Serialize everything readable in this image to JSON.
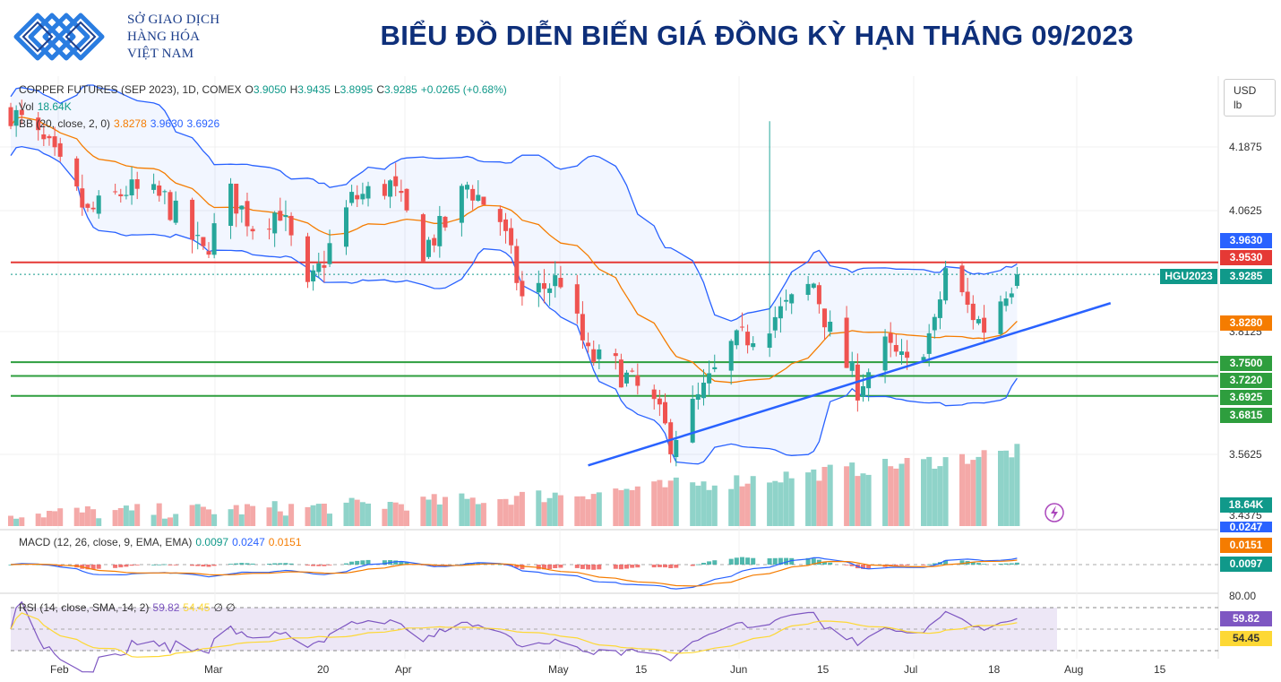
{
  "header": {
    "logo_line1": "SỞ GIAO DỊCH",
    "logo_line2": "HÀNG HÓA",
    "logo_line3": "VIỆT NAM",
    "title": "BIỂU ĐỒ DIỄN BIẾN GIÁ ĐỒNG KỲ HẠN THÁNG 09/2023",
    "brand_color": "#1d3f8c"
  },
  "legend": {
    "symbol": "COPPER FUTURES (SEP 2023), 1D, COMEX",
    "o_label": "O",
    "o_value": "3.9050",
    "h_label": "H",
    "h_value": "3.9435",
    "l_label": "L",
    "l_value": "3.8995",
    "c_label": "C",
    "c_value": "3.9285",
    "change": "+0.0265 (+0.68%)",
    "vol_label": "Vol",
    "vol_value": "18.64K",
    "bb_label": "BB (20, close, 2, 0)",
    "bb_basis": "3.8278",
    "bb_upper": "3.9630",
    "bb_lower": "3.6926",
    "macd_label": "MACD (12, 26, close, 9, EMA, EMA)",
    "macd_hist": "0.0097",
    "macd_line": "0.0247",
    "macd_signal": "0.0151",
    "rsi_label": "RSI (14, close, SMA, 14, 2)",
    "rsi_value": "59.82",
    "rsi_ma": "54.45",
    "rsi_extra": "∅ ∅"
  },
  "axis": {
    "currency": "USD",
    "unit": "lb",
    "price_ticks": [
      "4.1875",
      "4.0625",
      "3.5625",
      "3.4375"
    ],
    "partial_tick": "3.8125",
    "rsi_tick": "80.00",
    "x_ticks": [
      "Feb",
      "Mar",
      "20",
      "Apr",
      "May",
      "15",
      "Jun",
      "15",
      "Jul",
      "18",
      "Aug",
      "15"
    ]
  },
  "price_labels": [
    {
      "value": "3.9630",
      "color": "#2962ff"
    },
    {
      "value": "3.9530",
      "color": "#e53935"
    },
    {
      "value": "3.9285",
      "color": "#10998a"
    },
    {
      "value": "3.8280",
      "color": "#f57c00"
    },
    {
      "value": "3.7500",
      "color": "#2e9e3e"
    },
    {
      "value": "3.7220",
      "color": "#2e9e3e"
    },
    {
      "value": "3.6925",
      "color": "#2e9e3e"
    },
    {
      "value": "3.6815",
      "color": "#2e9e3e"
    },
    {
      "value": "18.64K",
      "color": "#10998a"
    },
    {
      "value": "0.0247",
      "color": "#2962ff"
    },
    {
      "value": "0.0151",
      "color": "#f57c00"
    },
    {
      "value": "0.0097",
      "color": "#10998a"
    },
    {
      "value": "59.82",
      "color": "#7e57c2"
    },
    {
      "value": "54.45",
      "color": "#fdd835"
    }
  ],
  "ticker_tag": "HGU2023",
  "chart_data": {
    "type": "candlestick",
    "symbol": "COPPER FUTURES (SEP 2023), 1D, COMEX",
    "y_range": [
      3.43,
      4.25
    ],
    "x_range": [
      "2023-01-25",
      "2023-08-22"
    ],
    "last": {
      "open": 3.905,
      "high": 3.9435,
      "low": 3.8995,
      "close": 3.9285,
      "change": 0.0265,
      "change_pct": 0.68,
      "volume": "18.64K"
    },
    "bollinger": {
      "period": 20,
      "mult": 2,
      "basis": 3.8278,
      "upper": 3.963,
      "lower": 3.6926
    },
    "levels": {
      "resistance": 3.953,
      "supports": [
        3.75,
        3.722,
        3.6815
      ]
    },
    "trendline": {
      "from": {
        "date": "2023-05-10",
        "price": 3.54
      },
      "to": {
        "date": "2023-08-13",
        "price": 3.87
      }
    },
    "close_path": [
      {
        "date": "2023-01-25",
        "close": 4.26
      },
      {
        "date": "2023-02-01",
        "close": 4.18
      },
      {
        "date": "2023-02-08",
        "close": 4.05
      },
      {
        "date": "2023-02-15",
        "close": 4.1
      },
      {
        "date": "2023-02-22",
        "close": 4.08
      },
      {
        "date": "2023-03-01",
        "close": 3.97
      },
      {
        "date": "2023-03-06",
        "close": 4.09
      },
      {
        "date": "2023-03-10",
        "close": 4.03
      },
      {
        "date": "2023-03-15",
        "close": 4.06
      },
      {
        "date": "2023-03-20",
        "close": 3.89
      },
      {
        "date": "2023-03-23",
        "close": 3.96
      },
      {
        "date": "2023-03-28",
        "close": 4.08
      },
      {
        "date": "2023-04-04",
        "close": 4.11
      },
      {
        "date": "2023-04-10",
        "close": 3.98
      },
      {
        "date": "2023-04-14",
        "close": 4.03
      },
      {
        "date": "2023-04-18",
        "close": 4.11
      },
      {
        "date": "2023-04-24",
        "close": 4.04
      },
      {
        "date": "2023-04-28",
        "close": 3.88
      },
      {
        "date": "2023-05-05",
        "close": 3.92
      },
      {
        "date": "2023-05-10",
        "close": 3.76
      },
      {
        "date": "2023-05-15",
        "close": 3.74
      },
      {
        "date": "2023-05-22",
        "close": 3.66
      },
      {
        "date": "2023-05-25",
        "close": 3.59
      },
      {
        "date": "2023-05-31",
        "close": 3.69
      },
      {
        "date": "2023-06-05",
        "close": 3.78
      },
      {
        "date": "2023-06-09",
        "close": 3.81
      },
      {
        "date": "2023-06-15",
        "close": 3.86
      },
      {
        "date": "2023-06-20",
        "close": 3.91
      },
      {
        "date": "2023-06-23",
        "close": 3.81
      },
      {
        "date": "2023-06-28",
        "close": 3.7
      },
      {
        "date": "2023-07-03",
        "close": 3.78
      },
      {
        "date": "2023-07-07",
        "close": 3.74
      },
      {
        "date": "2023-07-12",
        "close": 3.82
      },
      {
        "date": "2023-07-14",
        "close": 3.94
      },
      {
        "date": "2023-07-18",
        "close": 3.86
      },
      {
        "date": "2023-07-21",
        "close": 3.82
      },
      {
        "date": "2023-07-25",
        "close": 3.9
      },
      {
        "date": "2023-07-27",
        "close": 3.9285
      }
    ],
    "macd": {
      "fast": 12,
      "slow": 26,
      "signal": 9,
      "histogram": 0.0097,
      "macd": 0.0247,
      "signal_value": 0.0151
    },
    "rsi": {
      "period": 14,
      "value": 59.82,
      "ma": 54.45
    }
  }
}
